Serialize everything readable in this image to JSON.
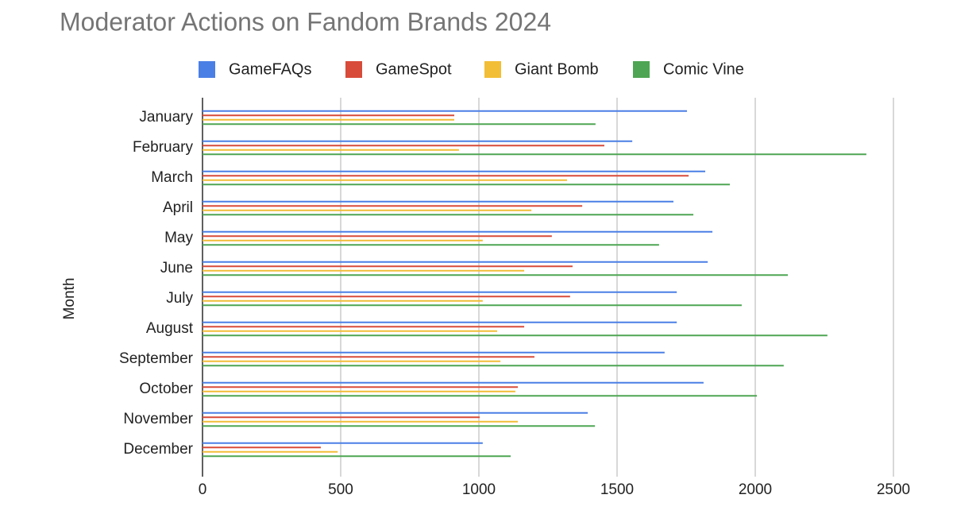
{
  "chart_data": {
    "type": "hbar",
    "title": "Moderator Actions on Fandom Brands 2024",
    "y_label": "Month",
    "categories": [
      "January",
      "February",
      "March",
      "April",
      "May",
      "June",
      "July",
      "August",
      "September",
      "October",
      "November",
      "December"
    ],
    "series": [
      {
        "name": "GameFAQs",
        "color": "#4a7fe5",
        "values": [
          1753,
          1555,
          1819,
          1704,
          1845,
          1828,
          1716,
          1716,
          1672,
          1813,
          1394,
          1014
        ]
      },
      {
        "name": "GameSpot",
        "color": "#d84b3a",
        "values": [
          911,
          1454,
          1759,
          1374,
          1264,
          1339,
          1330,
          1164,
          1201,
          1141,
          1003,
          428
        ]
      },
      {
        "name": "Giant Bomb",
        "color": "#f2bd37",
        "values": [
          911,
          928,
          1319,
          1190,
          1014,
          1164,
          1014,
          1066,
          1078,
          1132,
          1141,
          489
        ]
      },
      {
        "name": "Comic Vine",
        "color": "#4ea553",
        "values": [
          1422,
          2402,
          1908,
          1776,
          1652,
          2118,
          1951,
          2261,
          2103,
          2006,
          1420,
          1115
        ]
      }
    ],
    "xlim": [
      0,
      2500
    ],
    "xticks": [
      0,
      500,
      1000,
      1500,
      2000,
      2500
    ],
    "grid": true,
    "legend": "top"
  }
}
